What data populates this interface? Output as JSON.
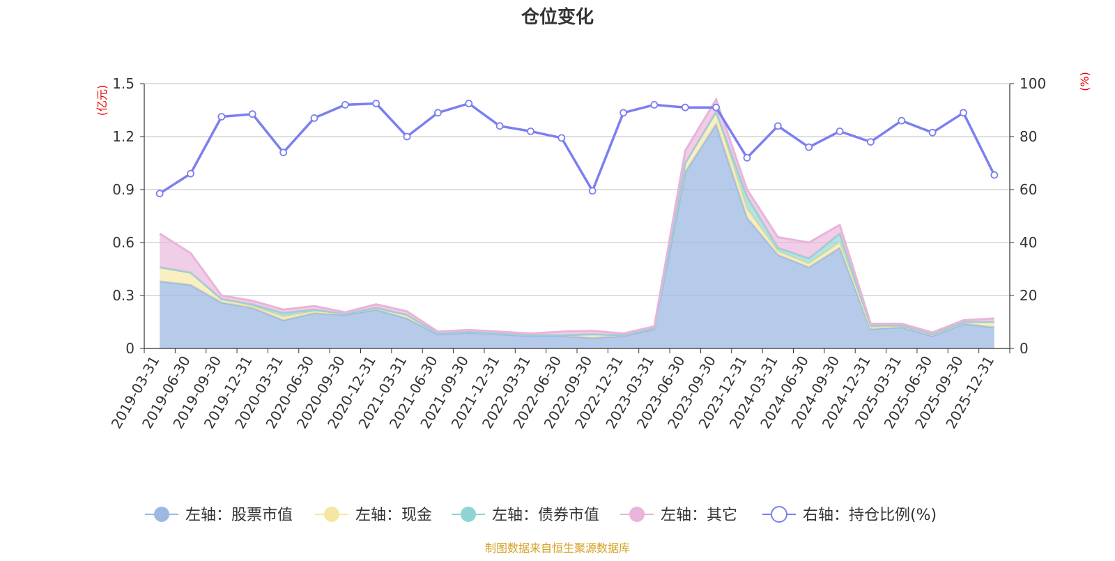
{
  "chart_data": {
    "type": "area",
    "title": "仓位变化",
    "left_axis": {
      "unit": "(亿元)",
      "ylim": [
        0,
        1.5
      ],
      "ticks": [
        "0",
        "0.3",
        "0.6",
        "0.9",
        "1.2",
        "1.5"
      ]
    },
    "right_axis": {
      "unit": "(%)",
      "ylim": [
        0,
        100
      ],
      "ticks": [
        "0",
        "20",
        "40",
        "60",
        "80",
        "100"
      ]
    },
    "grid": true,
    "legend_position": "bottom",
    "categories": [
      "2019-03-31",
      "2019-06-30",
      "2019-09-30",
      "2019-12-31",
      "2020-03-31",
      "2020-06-30",
      "2020-09-30",
      "2020-12-31",
      "2021-03-31",
      "2021-06-30",
      "2021-09-30",
      "2021-12-31",
      "2022-03-31",
      "2022-06-30",
      "2022-09-30",
      "2022-12-31",
      "2023-03-31",
      "2023-06-30",
      "2023-09-30",
      "2023-12-31",
      "2024-03-31",
      "2024-06-30",
      "2024-09-30",
      "2024-12-31",
      "2025-03-31",
      "2025-06-30",
      "2025-09-30",
      "2025-12-31"
    ],
    "series": [
      {
        "name": "左轴：股票市值",
        "axis": "left",
        "color": "#9db8e2",
        "values": [
          0.38,
          0.36,
          0.26,
          0.23,
          0.16,
          0.2,
          0.19,
          0.22,
          0.17,
          0.08,
          0.09,
          0.08,
          0.07,
          0.07,
          0.06,
          0.07,
          0.11,
          1.0,
          1.27,
          0.74,
          0.53,
          0.46,
          0.57,
          0.11,
          0.12,
          0.07,
          0.14,
          0.12
        ]
      },
      {
        "name": "左轴：现金",
        "axis": "left",
        "color": "#f7e6a0",
        "values": [
          0.08,
          0.07,
          0.02,
          0.01,
          0.02,
          0.01,
          0.005,
          0.01,
          0.02,
          0.005,
          0.005,
          0.005,
          0.005,
          0.005,
          0.02,
          0.005,
          0.005,
          0.05,
          0.07,
          0.05,
          0.02,
          0.02,
          0.03,
          0.01,
          0.01,
          0.01,
          0.01,
          0.03
        ]
      },
      {
        "name": "左轴：债券市值",
        "axis": "left",
        "color": "#8fd3d3",
        "values": [
          0,
          0,
          0,
          0.01,
          0.02,
          0.01,
          0,
          0,
          0,
          0,
          0,
          0,
          0,
          0,
          0,
          0,
          0,
          0,
          0,
          0.07,
          0.02,
          0.03,
          0.05,
          0.01,
          0,
          0,
          0,
          0
        ]
      },
      {
        "name": "左轴：其它",
        "axis": "left",
        "color": "#e8b4da",
        "values": [
          0.19,
          0.11,
          0.02,
          0.02,
          0.02,
          0.02,
          0.01,
          0.02,
          0.02,
          0.01,
          0.01,
          0.01,
          0.01,
          0.02,
          0.02,
          0.01,
          0.01,
          0.07,
          0.07,
          0.04,
          0.06,
          0.09,
          0.05,
          0.01,
          0.01,
          0.01,
          0.01,
          0.02
        ]
      },
      {
        "name": "右轴：持仓比例(%)",
        "axis": "right",
        "color": "#7b7ff0",
        "values": [
          58.5,
          66,
          87.5,
          88.5,
          74,
          87,
          92,
          92.5,
          80,
          89,
          92.5,
          84,
          82,
          79.5,
          59.5,
          89,
          92,
          91,
          91,
          72,
          84,
          76,
          82,
          78,
          86,
          81.5,
          89,
          65.5
        ]
      }
    ]
  },
  "footer": {
    "source": "制图数据来自恒生聚源数据库"
  }
}
